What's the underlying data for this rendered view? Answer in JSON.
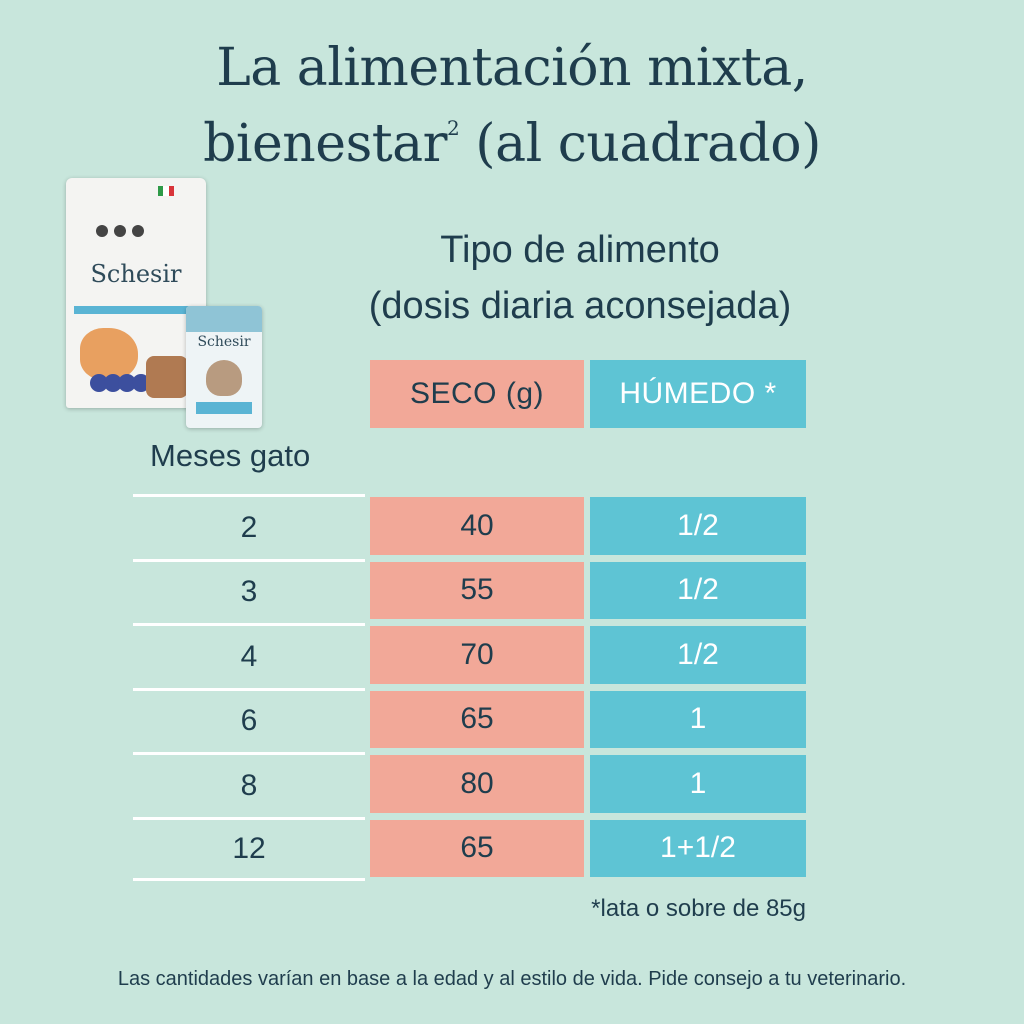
{
  "title": {
    "line1": "La alimentación mixta,",
    "line2_pre": "bienestar",
    "line2_sup": "2",
    "line2_post": " (al cuadrado)"
  },
  "product": {
    "bag_brand": "Schesir",
    "pouch_brand": "Schesir",
    "flag_colors": [
      "#2e9a48",
      "#ffffff",
      "#d8343a"
    ]
  },
  "subtitle": {
    "line1": "Tipo de alimento",
    "line2": "(dosis diaria aconsejada)"
  },
  "table": {
    "header_seco": "SECO (g)",
    "header_humedo": "HÚMEDO *",
    "age_label": "Meses gato",
    "rows": [
      {
        "age": "2",
        "seco": "40",
        "humedo": "1/2"
      },
      {
        "age": "3",
        "seco": "55",
        "humedo": "1/2"
      },
      {
        "age": "4",
        "seco": "70",
        "humedo": "1/2"
      },
      {
        "age": "6",
        "seco": "65",
        "humedo": "1"
      },
      {
        "age": "8",
        "seco": "80",
        "humedo": "1"
      },
      {
        "age": "12",
        "seco": "65",
        "humedo": "1+1/2"
      }
    ]
  },
  "note": "*lata o sobre de 85g",
  "footer": "Las cantidades varían en base a la edad y al estilo de vida. Pide consejo a tu veterinario.",
  "colors": {
    "background": "#c8e6dc",
    "seco": "#f2a898",
    "humedo": "#5ec4d4",
    "text": "#1f3d4d"
  }
}
